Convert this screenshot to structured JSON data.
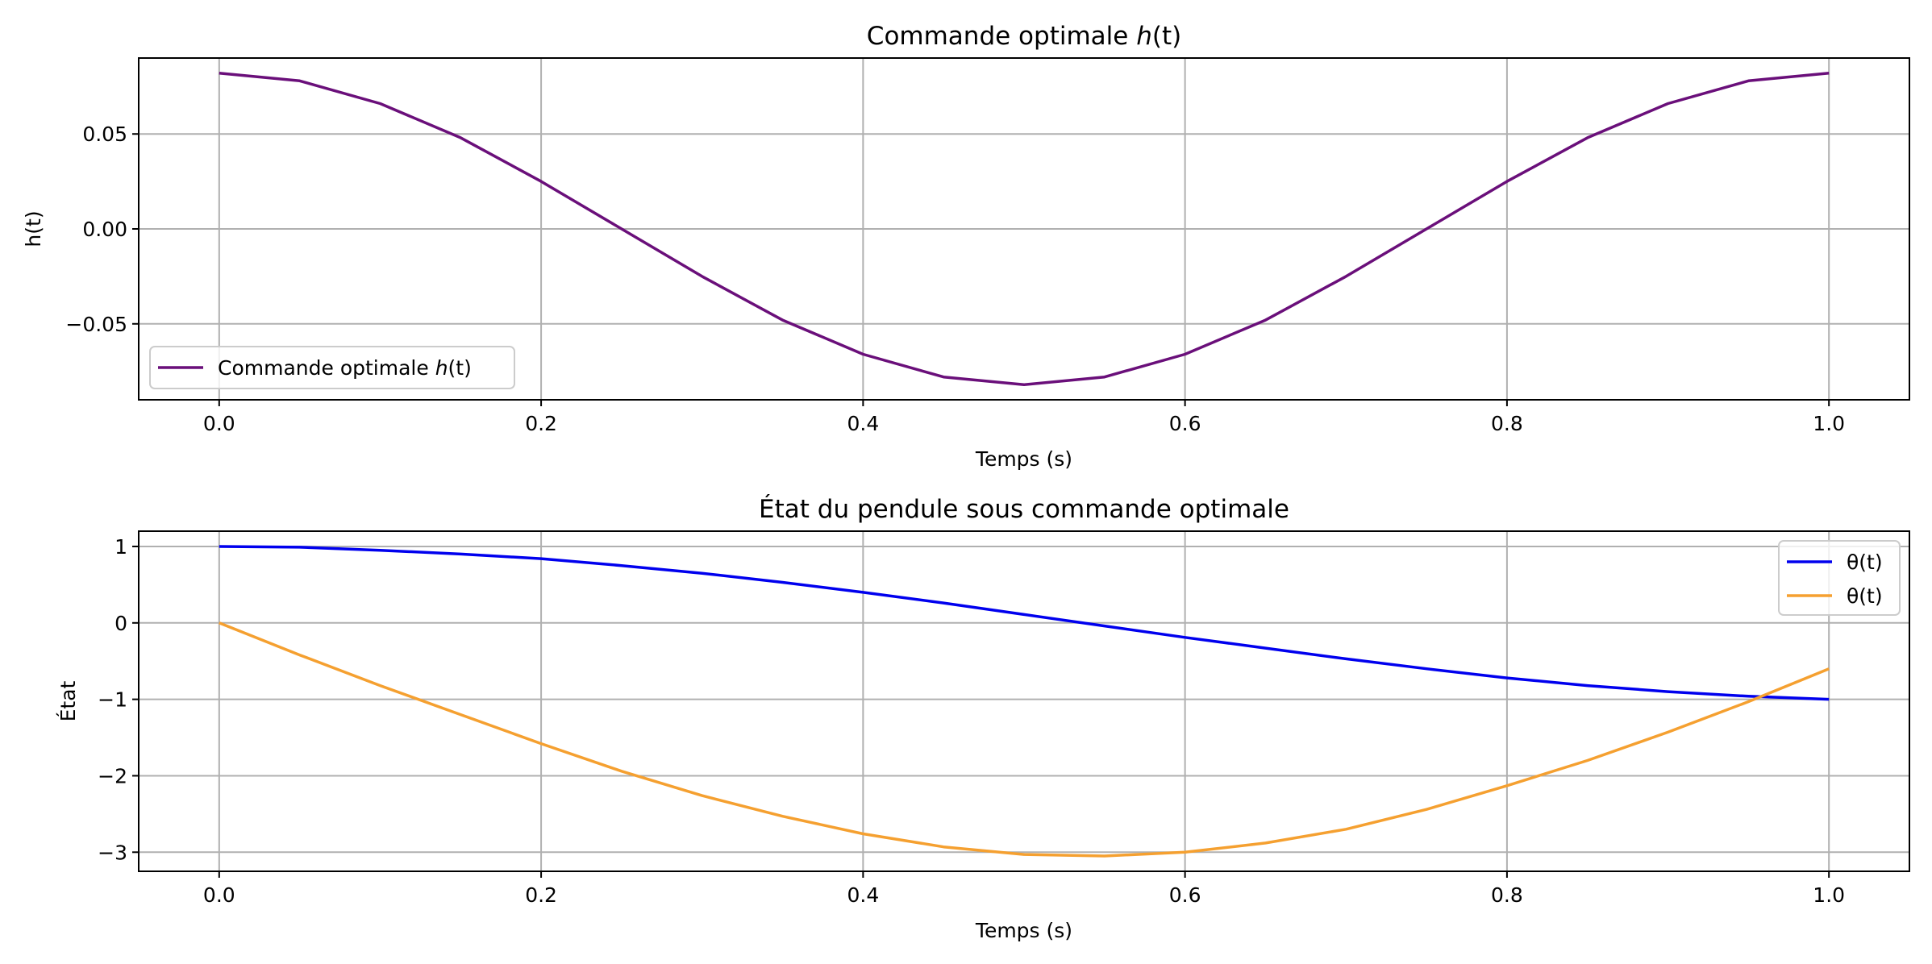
{
  "chart_data": [
    {
      "type": "line",
      "title_pre": "Commande optimale ",
      "title_math": "h",
      "title_post": "(t)",
      "xlabel": "Temps (s)",
      "ylabel": "h(t)",
      "xlim": [
        -0.05,
        1.05
      ],
      "ylim": [
        -0.09,
        0.09
      ],
      "xticks": [
        0.0,
        0.2,
        0.4,
        0.6,
        0.8,
        1.0
      ],
      "xtick_labels": [
        "0.0",
        "0.2",
        "0.4",
        "0.6",
        "0.8",
        "1.0"
      ],
      "yticks": [
        -0.05,
        0.0,
        0.05
      ],
      "ytick_labels": [
        "−0.05",
        "0.00",
        "0.05"
      ],
      "grid": true,
      "legend_position": "lower-left",
      "series": [
        {
          "name_pre": "Commande optimale ",
          "name_math": "h",
          "name_post": "(t)",
          "color": "#6a0f7a",
          "x": [
            0.0,
            0.05,
            0.1,
            0.15,
            0.2,
            0.25,
            0.3,
            0.35,
            0.4,
            0.45,
            0.5,
            0.55,
            0.6,
            0.65,
            0.7,
            0.75,
            0.8,
            0.85,
            0.9,
            0.95,
            1.0
          ],
          "y": [
            0.082,
            0.078,
            0.066,
            0.048,
            0.025,
            0.0,
            -0.025,
            -0.048,
            -0.066,
            -0.078,
            -0.082,
            -0.078,
            -0.066,
            -0.048,
            -0.025,
            0.0,
            0.025,
            0.048,
            0.066,
            0.078,
            0.082
          ]
        }
      ]
    },
    {
      "type": "line",
      "title": "État du pendule sous commande optimale",
      "xlabel": "Temps (s)",
      "ylabel": "État",
      "xlim": [
        -0.05,
        1.05
      ],
      "ylim": [
        -3.25,
        1.2
      ],
      "xticks": [
        0.0,
        0.2,
        0.4,
        0.6,
        0.8,
        1.0
      ],
      "xtick_labels": [
        "0.0",
        "0.2",
        "0.4",
        "0.6",
        "0.8",
        "1.0"
      ],
      "yticks": [
        -3,
        -2,
        -1,
        0,
        1
      ],
      "ytick_labels": [
        "−3",
        "−2",
        "−1",
        "0",
        "1"
      ],
      "grid": true,
      "legend_position": "upper-right",
      "series": [
        {
          "name": "θ(t)",
          "color": "#0000ee",
          "x": [
            0.0,
            0.05,
            0.1,
            0.15,
            0.2,
            0.25,
            0.3,
            0.35,
            0.4,
            0.45,
            0.5,
            0.55,
            0.6,
            0.65,
            0.7,
            0.75,
            0.8,
            0.85,
            0.9,
            0.95,
            1.0
          ],
          "y": [
            1.0,
            0.99,
            0.95,
            0.9,
            0.84,
            0.75,
            0.65,
            0.53,
            0.4,
            0.26,
            0.11,
            -0.04,
            -0.19,
            -0.33,
            -0.47,
            -0.6,
            -0.72,
            -0.82,
            -0.9,
            -0.96,
            -1.0
          ]
        },
        {
          "name": "θ(t)",
          "color": "#f5a030",
          "x": [
            0.0,
            0.05,
            0.1,
            0.15,
            0.2,
            0.25,
            0.3,
            0.35,
            0.4,
            0.45,
            0.5,
            0.55,
            0.6,
            0.65,
            0.7,
            0.75,
            0.8,
            0.85,
            0.9,
            0.95,
            1.0
          ],
          "y": [
            0.0,
            -0.42,
            -0.82,
            -1.2,
            -1.58,
            -1.94,
            -2.26,
            -2.53,
            -2.76,
            -2.93,
            -3.03,
            -3.05,
            -3.0,
            -2.88,
            -2.7,
            -2.44,
            -2.13,
            -1.8,
            -1.43,
            -1.03,
            -0.6
          ]
        }
      ]
    }
  ]
}
